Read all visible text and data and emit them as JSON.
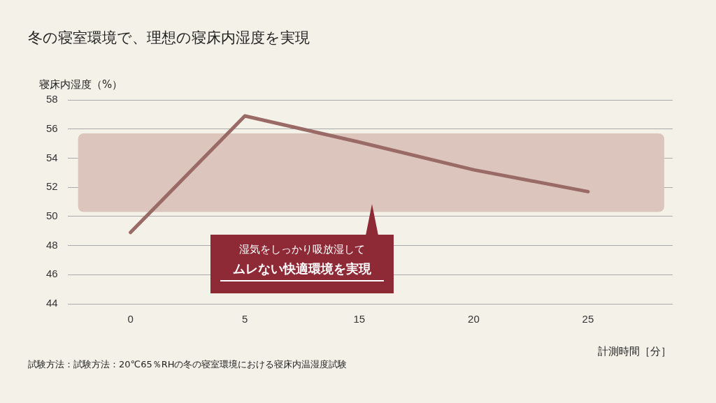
{
  "chart_data": {
    "type": "line",
    "title": "冬の寝室環境で、理想の寝床内湿度を実現",
    "ylabel": "寝床内湿度（%）",
    "xlabel": "計測時間［分］",
    "categories": [
      "0",
      "5",
      "15",
      "20",
      "25"
    ],
    "series": [
      {
        "color": "#9a6a66",
        "values": [
          48.9,
          56.9,
          55.1,
          53.2,
          51.7
        ]
      }
    ],
    "ylim": [
      44,
      58
    ],
    "yticks": [
      44,
      46,
      48,
      50,
      52,
      54,
      56,
      58
    ],
    "grid": "y",
    "legend": false,
    "marker": "none",
    "line_style": "solid",
    "bands": [
      {
        "axis": "y",
        "from": 50.3,
        "to": 55.7,
        "color": "#dcc5bd"
      }
    ],
    "annotations": [
      "湿気をしっかり吸放湿して",
      "ムレない快適環境を実現",
      "試験方法：試験方法：20℃65％RHの冬の寝室環境における寝床内温湿度試験"
    ]
  }
}
